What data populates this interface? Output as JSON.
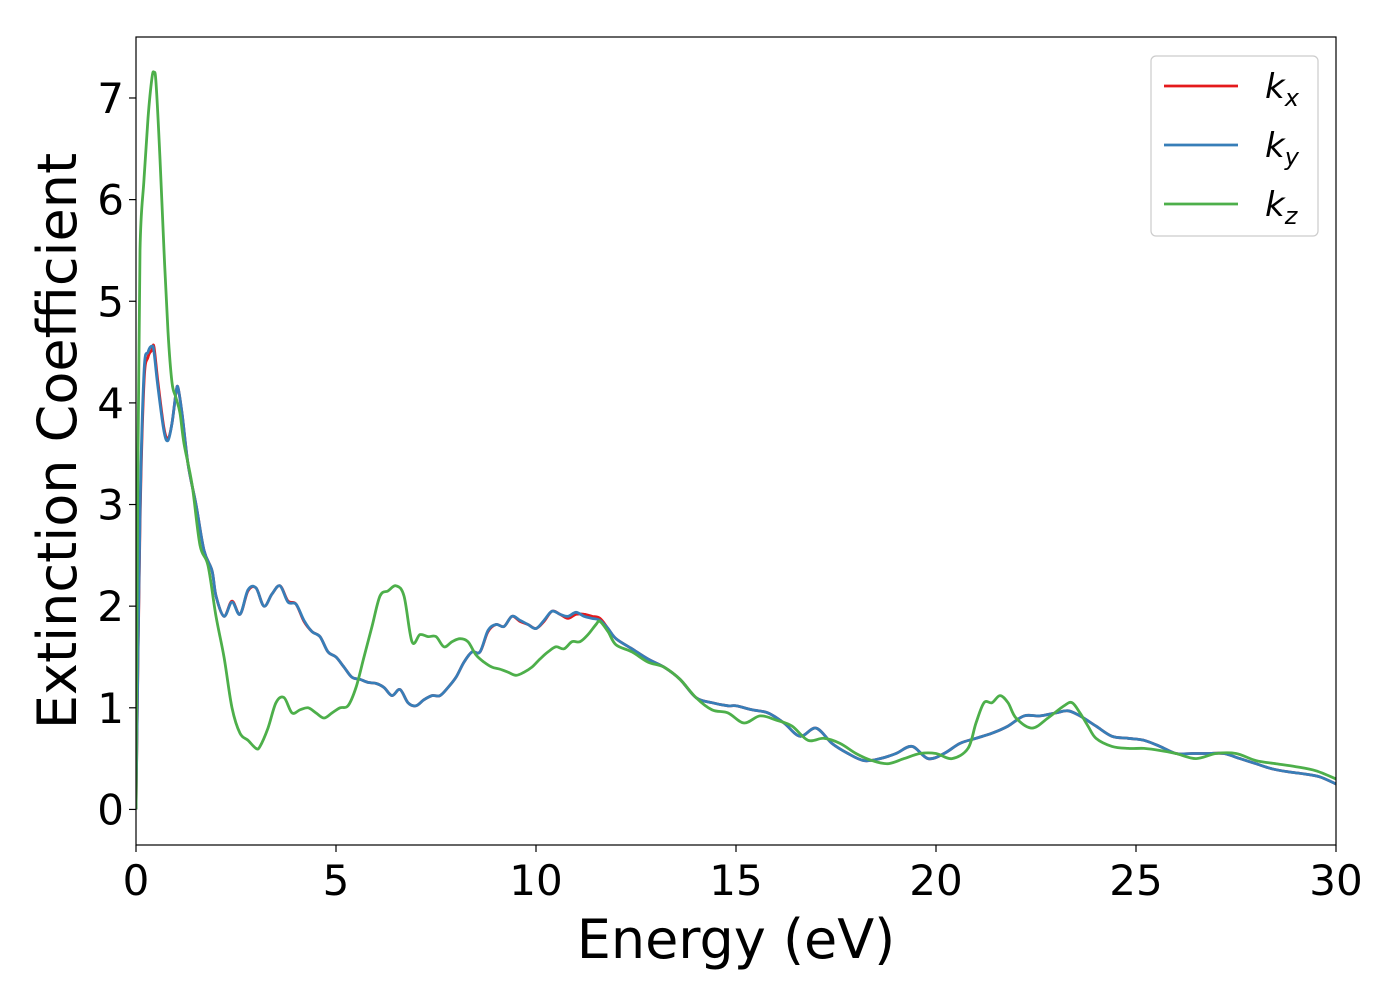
{
  "chart_data": {
    "type": "line",
    "title": "",
    "xlabel": "Energy (eV)",
    "ylabel": "Extinction Coefficient",
    "xlim": [
      0,
      30
    ],
    "ylim": [
      -0.35,
      7.6
    ],
    "xticks": [
      0,
      5,
      10,
      15,
      20,
      25,
      30
    ],
    "yticks": [
      0,
      1,
      2,
      3,
      4,
      5,
      6,
      7
    ],
    "grid": false,
    "legend_position": "top-right",
    "series": [
      {
        "name": "k_x",
        "label_main": "k",
        "label_sub": "x",
        "color": "#e41a1c",
        "x": [
          0,
          0.1,
          0.2,
          0.3,
          0.4,
          0.45,
          0.55,
          0.7,
          0.8,
          0.9,
          1.0,
          1.05,
          1.15,
          1.3,
          1.5,
          1.7,
          1.9,
          2.0,
          2.2,
          2.4,
          2.6,
          2.8,
          3.0,
          3.2,
          3.4,
          3.6,
          3.8,
          4.0,
          4.2,
          4.4,
          4.6,
          4.8,
          5.0,
          5.2,
          5.4,
          5.6,
          5.8,
          6.0,
          6.2,
          6.4,
          6.6,
          6.8,
          7.0,
          7.2,
          7.4,
          7.6,
          7.8,
          8.0,
          8.2,
          8.4,
          8.6,
          8.8,
          9.0,
          9.2,
          9.4,
          9.6,
          9.8,
          10.0,
          10.2,
          10.4,
          10.6,
          10.8,
          11.0,
          11.2,
          11.4,
          11.6,
          11.8,
          12.0,
          12.4,
          12.8,
          13.2,
          13.6,
          14.0,
          14.4,
          14.8,
          15.0,
          15.4,
          15.8,
          16.2,
          16.6,
          17.0,
          17.4,
          17.8,
          18.2,
          18.6,
          19.0,
          19.4,
          19.8,
          20.2,
          20.6,
          21.0,
          21.4,
          21.8,
          22.2,
          22.6,
          23.0,
          23.3,
          23.6,
          24.0,
          24.4,
          24.8,
          25.2,
          25.6,
          26.0,
          26.4,
          26.8,
          27.2,
          27.6,
          28.0,
          28.4,
          28.8,
          29.2,
          29.6,
          30.0
        ],
        "y": [
          0,
          2.8,
          4.2,
          4.45,
          4.52,
          4.55,
          4.2,
          3.75,
          3.65,
          3.8,
          4.1,
          4.15,
          3.9,
          3.4,
          3.0,
          2.55,
          2.35,
          2.1,
          1.9,
          2.05,
          1.92,
          2.15,
          2.18,
          2.0,
          2.12,
          2.2,
          2.05,
          2.02,
          1.85,
          1.75,
          1.7,
          1.55,
          1.5,
          1.4,
          1.3,
          1.28,
          1.25,
          1.24,
          1.2,
          1.12,
          1.18,
          1.05,
          1.02,
          1.08,
          1.12,
          1.12,
          1.2,
          1.3,
          1.45,
          1.55,
          1.55,
          1.75,
          1.82,
          1.8,
          1.9,
          1.85,
          1.82,
          1.78,
          1.85,
          1.95,
          1.92,
          1.88,
          1.92,
          1.92,
          1.9,
          1.88,
          1.78,
          1.68,
          1.58,
          1.48,
          1.4,
          1.28,
          1.1,
          1.05,
          1.02,
          1.02,
          0.98,
          0.95,
          0.85,
          0.72,
          0.8,
          0.65,
          0.55,
          0.48,
          0.5,
          0.55,
          0.62,
          0.5,
          0.55,
          0.65,
          0.7,
          0.75,
          0.82,
          0.92,
          0.92,
          0.95,
          0.97,
          0.92,
          0.82,
          0.72,
          0.7,
          0.68,
          0.62,
          0.55,
          0.55,
          0.55,
          0.55,
          0.5,
          0.45,
          0.4,
          0.37,
          0.35,
          0.32,
          0.25
        ]
      },
      {
        "name": "k_y",
        "label_main": "k",
        "label_sub": "y",
        "color": "#377eb8",
        "x": [
          0,
          0.1,
          0.2,
          0.3,
          0.4,
          0.45,
          0.55,
          0.7,
          0.8,
          0.9,
          1.0,
          1.05,
          1.15,
          1.3,
          1.5,
          1.7,
          1.9,
          2.0,
          2.2,
          2.4,
          2.6,
          2.8,
          3.0,
          3.2,
          3.4,
          3.6,
          3.8,
          4.0,
          4.2,
          4.4,
          4.6,
          4.8,
          5.0,
          5.2,
          5.4,
          5.6,
          5.8,
          6.0,
          6.2,
          6.4,
          6.6,
          6.8,
          7.0,
          7.2,
          7.4,
          7.6,
          7.8,
          8.0,
          8.2,
          8.4,
          8.6,
          8.8,
          9.0,
          9.2,
          9.4,
          9.6,
          9.8,
          10.0,
          10.2,
          10.4,
          10.6,
          10.8,
          11.0,
          11.2,
          11.4,
          11.6,
          11.8,
          12.0,
          12.4,
          12.8,
          13.2,
          13.6,
          14.0,
          14.4,
          14.8,
          15.0,
          15.4,
          15.8,
          16.2,
          16.6,
          17.0,
          17.4,
          17.8,
          18.2,
          18.6,
          19.0,
          19.4,
          19.8,
          20.2,
          20.6,
          21.0,
          21.4,
          21.8,
          22.2,
          22.6,
          23.0,
          23.3,
          23.6,
          24.0,
          24.4,
          24.8,
          25.2,
          25.6,
          26.0,
          26.4,
          26.8,
          27.2,
          27.6,
          28.0,
          28.4,
          28.8,
          29.2,
          29.6,
          30.0
        ],
        "y": [
          0,
          2.9,
          4.3,
          4.5,
          4.56,
          4.5,
          4.15,
          3.72,
          3.63,
          3.8,
          4.1,
          4.15,
          3.9,
          3.4,
          3.0,
          2.55,
          2.35,
          2.1,
          1.9,
          2.04,
          1.92,
          2.16,
          2.18,
          2.0,
          2.12,
          2.2,
          2.04,
          2.02,
          1.86,
          1.75,
          1.7,
          1.55,
          1.5,
          1.4,
          1.3,
          1.28,
          1.25,
          1.24,
          1.2,
          1.12,
          1.18,
          1.05,
          1.02,
          1.08,
          1.12,
          1.12,
          1.2,
          1.3,
          1.45,
          1.55,
          1.55,
          1.76,
          1.82,
          1.8,
          1.9,
          1.86,
          1.82,
          1.78,
          1.86,
          1.95,
          1.92,
          1.9,
          1.94,
          1.9,
          1.88,
          1.86,
          1.78,
          1.68,
          1.58,
          1.48,
          1.4,
          1.28,
          1.1,
          1.05,
          1.02,
          1.02,
          0.98,
          0.95,
          0.85,
          0.72,
          0.8,
          0.65,
          0.55,
          0.48,
          0.5,
          0.55,
          0.62,
          0.5,
          0.55,
          0.65,
          0.7,
          0.75,
          0.82,
          0.92,
          0.92,
          0.95,
          0.97,
          0.92,
          0.82,
          0.72,
          0.7,
          0.68,
          0.62,
          0.55,
          0.55,
          0.55,
          0.55,
          0.5,
          0.45,
          0.4,
          0.37,
          0.35,
          0.32,
          0.25
        ]
      },
      {
        "name": "k_z",
        "label_main": "k",
        "label_sub": "z",
        "color": "#4daf4a",
        "x": [
          0,
          0.05,
          0.1,
          0.2,
          0.3,
          0.4,
          0.45,
          0.5,
          0.6,
          0.7,
          0.8,
          0.9,
          1.0,
          1.1,
          1.2,
          1.4,
          1.6,
          1.8,
          2.0,
          2.2,
          2.4,
          2.6,
          2.8,
          3.0,
          3.1,
          3.3,
          3.5,
          3.7,
          3.9,
          4.1,
          4.3,
          4.5,
          4.7,
          4.9,
          5.1,
          5.3,
          5.5,
          5.7,
          5.9,
          6.1,
          6.3,
          6.5,
          6.7,
          6.9,
          7.1,
          7.3,
          7.5,
          7.7,
          7.9,
          8.1,
          8.3,
          8.5,
          8.7,
          8.9,
          9.1,
          9.3,
          9.5,
          9.7,
          9.9,
          10.1,
          10.3,
          10.5,
          10.7,
          10.9,
          11.1,
          11.3,
          11.5,
          11.6,
          11.8,
          12.0,
          12.4,
          12.8,
          13.2,
          13.6,
          14.0,
          14.4,
          14.8,
          15.2,
          15.6,
          16.0,
          16.4,
          16.8,
          17.2,
          17.6,
          18.0,
          18.4,
          18.8,
          19.2,
          19.6,
          20.0,
          20.4,
          20.8,
          21.0,
          21.2,
          21.4,
          21.6,
          21.8,
          22.0,
          22.4,
          22.8,
          23.2,
          23.4,
          23.6,
          23.8,
          24.0,
          24.4,
          24.8,
          25.2,
          25.6,
          26.0,
          26.5,
          27.0,
          27.5,
          28.0,
          28.5,
          29.0,
          29.5,
          30.0
        ],
        "y": [
          0,
          3.5,
          5.5,
          6.2,
          6.8,
          7.2,
          7.25,
          7.15,
          6.4,
          5.5,
          4.7,
          4.2,
          4.05,
          3.9,
          3.6,
          3.2,
          2.6,
          2.4,
          1.9,
          1.5,
          1.0,
          0.75,
          0.68,
          0.6,
          0.62,
          0.8,
          1.05,
          1.1,
          0.95,
          0.98,
          1.0,
          0.95,
          0.9,
          0.95,
          1.0,
          1.02,
          1.2,
          1.5,
          1.8,
          2.1,
          2.15,
          2.2,
          2.1,
          1.65,
          1.72,
          1.7,
          1.7,
          1.6,
          1.65,
          1.68,
          1.65,
          1.52,
          1.45,
          1.4,
          1.38,
          1.35,
          1.32,
          1.35,
          1.4,
          1.48,
          1.55,
          1.6,
          1.58,
          1.65,
          1.65,
          1.72,
          1.82,
          1.85,
          1.75,
          1.62,
          1.55,
          1.45,
          1.4,
          1.28,
          1.1,
          0.98,
          0.95,
          0.85,
          0.92,
          0.88,
          0.82,
          0.68,
          0.7,
          0.65,
          0.55,
          0.48,
          0.45,
          0.5,
          0.55,
          0.55,
          0.5,
          0.6,
          0.85,
          1.05,
          1.05,
          1.12,
          1.05,
          0.9,
          0.8,
          0.9,
          1.02,
          1.05,
          0.95,
          0.82,
          0.7,
          0.62,
          0.6,
          0.6,
          0.58,
          0.55,
          0.5,
          0.55,
          0.55,
          0.48,
          0.45,
          0.42,
          0.38,
          0.3
        ]
      }
    ]
  }
}
